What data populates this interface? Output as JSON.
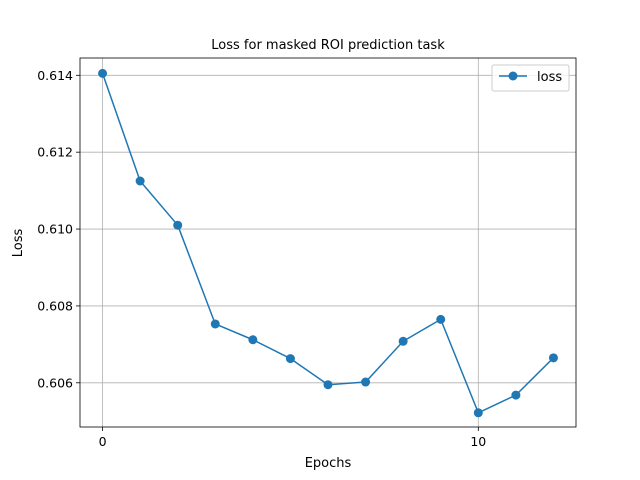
{
  "chart_data": {
    "type": "line",
    "title": "Loss for masked ROI prediction task",
    "xlabel": "Epochs",
    "ylabel": "Loss",
    "xlim": [
      -0.6,
      12.6
    ],
    "ylim": [
      0.60485,
      0.61445
    ],
    "xticks": [
      0,
      10
    ],
    "yticks": [
      0.606,
      0.608,
      0.61,
      0.612,
      0.614
    ],
    "ytick_labels": [
      "0.606",
      "0.608",
      "0.610",
      "0.612",
      "0.614"
    ],
    "xtick_labels": [
      "0",
      "10"
    ],
    "grid": true,
    "legend_position": "top-right",
    "series": [
      {
        "name": "loss",
        "color": "#1f77b4",
        "marker": "circle",
        "x": [
          0,
          1,
          2,
          3,
          4,
          5,
          6,
          7,
          8,
          9,
          10,
          11,
          12
        ],
        "values": [
          0.61405,
          0.61125,
          0.6101,
          0.60753,
          0.60712,
          0.60663,
          0.60595,
          0.60602,
          0.60708,
          0.60765,
          0.60522,
          0.60568,
          0.60665
        ]
      }
    ]
  }
}
